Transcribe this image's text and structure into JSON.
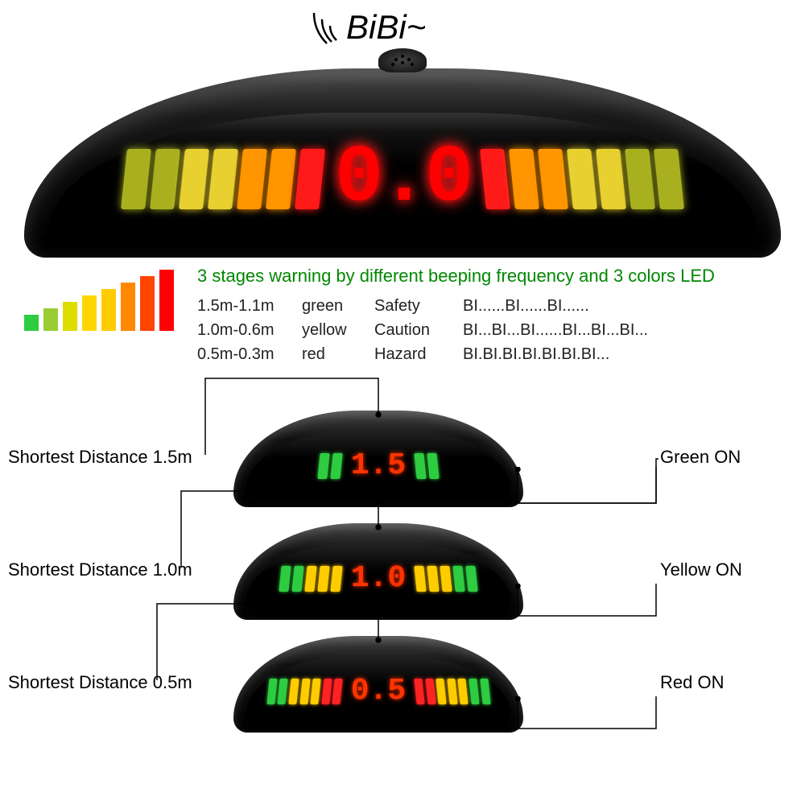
{
  "sound": {
    "label": "BiBi~"
  },
  "main_display": {
    "value": "0.0",
    "left_bars": [
      "olive",
      "olive",
      "yellow",
      "yellow",
      "orange",
      "orange",
      "red"
    ],
    "right_bars": [
      "red",
      "orange",
      "orange",
      "yellow",
      "yellow",
      "olive",
      "olive"
    ]
  },
  "legend_bars": {
    "colors": [
      "#2ecc40",
      "#9acd32",
      "#dddd00",
      "#ffd700",
      "#ffcc00",
      "#ff8800",
      "#ff4400",
      "#ff0000"
    ]
  },
  "info": {
    "title": "3 stages warning by different beeping frequency and 3 colors LED",
    "title_color": "#008800",
    "rows": [
      {
        "range": "1.5m-1.1m",
        "color": "green",
        "level": "Safety",
        "beep": "BI......BI......BI......"
      },
      {
        "range": "1.0m-0.6m",
        "color": "yellow",
        "level": "Caution",
        "beep": "BI...BI...BI......BI...BI...BI..."
      },
      {
        "range": "0.5m-0.3m",
        "color": "red",
        "level": "Hazard",
        "beep": "BI.BI.BI.BI.BI.BI.BI..."
      }
    ]
  },
  "stages": [
    {
      "distance_label": "Shortest Distance 1.5m",
      "status_label": "Green ON",
      "digit": "1.5",
      "left": [
        "g",
        "g"
      ],
      "right": [
        "g",
        "g"
      ]
    },
    {
      "distance_label": "Shortest Distance 1.0m",
      "status_label": "Yellow  ON",
      "digit": "1.0",
      "left": [
        "g",
        "g",
        "y",
        "y",
        "y"
      ],
      "right": [
        "y",
        "y",
        "y",
        "g",
        "g"
      ]
    },
    {
      "distance_label": "Shortest Distance 0.5m",
      "status_label": "Red  ON",
      "digit": "0.5",
      "left": [
        "g",
        "g",
        "y",
        "y",
        "y",
        "rd",
        "rd"
      ],
      "right": [
        "rd",
        "rd",
        "y",
        "y",
        "y",
        "g",
        "g"
      ]
    }
  ],
  "colors": {
    "led_red": "#ff1a1a",
    "led_orange": "#ff9500",
    "led_yellow": "#e8d030",
    "led_olive": "#a8b020",
    "led_green": "#4caf50",
    "digit": "#ff0000",
    "small_digit": "#ff3300",
    "text": "#222222",
    "background": "#ffffff"
  },
  "typography": {
    "bibi_fontsize": 42,
    "title_fontsize": 22,
    "table_fontsize": 20,
    "label_fontsize": 22,
    "main_digit_fontsize": 100,
    "small_digit_fontsize": 38
  }
}
